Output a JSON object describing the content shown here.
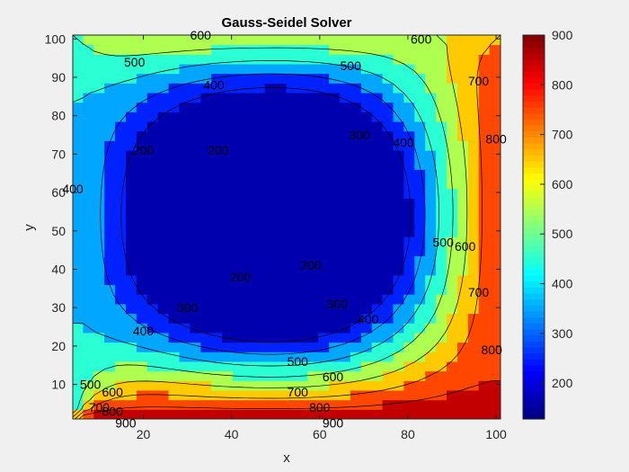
{
  "chart_data": {
    "type": "contourf",
    "title": "Gauss-Seidel Solver",
    "xlabel": "x",
    "ylabel": "y",
    "xlim": [
      4,
      101
    ],
    "ylim": [
      1,
      101
    ],
    "x_ticks": [
      "20",
      "40",
      "60",
      "80",
      "100"
    ],
    "y_ticks": [
      "10",
      "20",
      "30",
      "40",
      "50",
      "60",
      "70",
      "80",
      "90",
      "100"
    ],
    "colormap": "jet",
    "clim": [
      128,
      900
    ],
    "colorbar_ticks": [
      "200",
      "300",
      "400",
      "500",
      "600",
      "700",
      "800",
      "900"
    ],
    "contour_levels": [
      200,
      300,
      400,
      500,
      600,
      700,
      800,
      900
    ],
    "boundary_conditions": {
      "left_x4": 400,
      "top_y101": 600,
      "bottom_y1": 900,
      "right_x101": 800
    },
    "contour_labels": [
      {
        "text": "600",
        "x": 33,
        "y": 101
      },
      {
        "text": "600",
        "x": 83,
        "y": 100
      },
      {
        "text": "500",
        "x": 18,
        "y": 94
      },
      {
        "text": "500",
        "x": 67,
        "y": 93
      },
      {
        "text": "400",
        "x": 36,
        "y": 88
      },
      {
        "text": "700",
        "x": 96,
        "y": 89
      },
      {
        "text": "300",
        "x": 69,
        "y": 75
      },
      {
        "text": "400",
        "x": 79,
        "y": 73
      },
      {
        "text": "800",
        "x": 100,
        "y": 74
      },
      {
        "text": "200",
        "x": 20,
        "y": 71
      },
      {
        "text": "200",
        "x": 37,
        "y": 71
      },
      {
        "text": "400",
        "x": 4,
        "y": 61
      },
      {
        "text": "500",
        "x": 88,
        "y": 47
      },
      {
        "text": "600",
        "x": 93,
        "y": 46
      },
      {
        "text": "200",
        "x": 58,
        "y": 41
      },
      {
        "text": "200",
        "x": 42,
        "y": 38
      },
      {
        "text": "700",
        "x": 96,
        "y": 34
      },
      {
        "text": "300",
        "x": 30,
        "y": 30
      },
      {
        "text": "300",
        "x": 64,
        "y": 31
      },
      {
        "text": "400",
        "x": 71,
        "y": 27
      },
      {
        "text": "400",
        "x": 20,
        "y": 24
      },
      {
        "text": "800",
        "x": 99,
        "y": 19
      },
      {
        "text": "500",
        "x": 55,
        "y": 16
      },
      {
        "text": "600",
        "x": 63,
        "y": 12
      },
      {
        "text": "700",
        "x": 55,
        "y": 8
      },
      {
        "text": "500",
        "x": 8,
        "y": 10
      },
      {
        "text": "600",
        "x": 13,
        "y": 8
      },
      {
        "text": "800",
        "x": 60,
        "y": 4
      },
      {
        "text": "700",
        "x": 10,
        "y": 4
      },
      {
        "text": "800",
        "x": 13,
        "y": 3
      },
      {
        "text": "900",
        "x": 16,
        "y": 0
      },
      {
        "text": "900",
        "x": 63,
        "y": 0
      }
    ]
  }
}
